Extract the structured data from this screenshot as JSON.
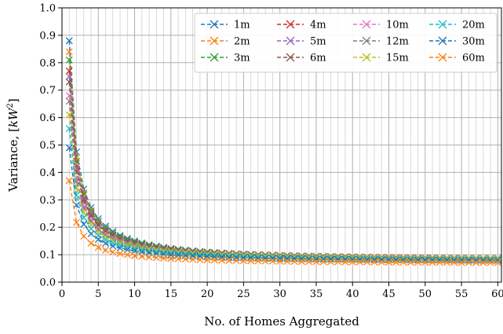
{
  "chart_data": {
    "type": "line",
    "title": "",
    "xlabel": "No. of Homes Aggregated",
    "ylabel_prefix": "Variance, [",
    "ylabel_unit_base": "kW",
    "ylabel_unit_exp": "2",
    "ylabel_suffix": "]",
    "xlim": [
      0,
      60.5
    ],
    "ylim": [
      0.0,
      1.0
    ],
    "xticks": [
      0,
      5,
      10,
      15,
      20,
      25,
      30,
      35,
      40,
      45,
      50,
      55,
      60
    ],
    "yticks": [
      0.0,
      0.1,
      0.2,
      0.3,
      0.4,
      0.5,
      0.6,
      0.7,
      0.8,
      0.9,
      1.0
    ],
    "xtick_labels": [
      "0",
      "5",
      "10",
      "15",
      "20",
      "25",
      "30",
      "35",
      "40",
      "45",
      "50",
      "55",
      "60"
    ],
    "ytick_labels": [
      "0.0",
      "0.1",
      "0.2",
      "0.3",
      "0.4",
      "0.5",
      "0.6",
      "0.7",
      "0.8",
      "0.9",
      "1.0"
    ],
    "grid": true,
    "grid_minor_x_step": 1,
    "legend_location": "top-right",
    "legend_columns": 4,
    "marker": "x",
    "line_style": "dashed",
    "x": [
      1,
      2,
      3,
      4,
      5,
      6,
      7,
      8,
      9,
      10,
      11,
      12,
      13,
      14,
      15,
      16,
      17,
      18,
      19,
      20,
      21,
      22,
      23,
      24,
      25,
      26,
      27,
      28,
      29,
      30,
      31,
      32,
      33,
      34,
      35,
      36,
      37,
      38,
      39,
      40,
      41,
      42,
      43,
      44,
      45,
      46,
      47,
      48,
      49,
      50,
      51,
      52,
      53,
      54,
      55,
      56,
      57,
      58,
      59,
      60
    ],
    "model": "y = floor + a / x",
    "series": [
      {
        "name": "1m",
        "color": "#1f77b4",
        "at_1": 0.88,
        "floor": 0.069
      },
      {
        "name": "2m",
        "color": "#ff7f0e",
        "at_1": 0.84,
        "floor": 0.068
      },
      {
        "name": "3m",
        "color": "#2ca02c",
        "at_1": 0.81,
        "floor": 0.073
      },
      {
        "name": "4m",
        "color": "#d62728",
        "at_1": 0.77,
        "floor": 0.072
      },
      {
        "name": "5m",
        "color": "#9467bd",
        "at_1": 0.75,
        "floor": 0.074
      },
      {
        "name": "6m",
        "color": "#8c564b",
        "at_1": 0.73,
        "floor": 0.076
      },
      {
        "name": "10m",
        "color": "#e377c2",
        "at_1": 0.68,
        "floor": 0.074
      },
      {
        "name": "12m",
        "color": "#7f7f7f",
        "at_1": 0.66,
        "floor": 0.075
      },
      {
        "name": "15m",
        "color": "#bcbd22",
        "at_1": 0.61,
        "floor": 0.076
      },
      {
        "name": "20m",
        "color": "#17becf",
        "at_1": 0.56,
        "floor": 0.073
      },
      {
        "name": "30m",
        "color": "#1f77b4",
        "at_1": 0.49,
        "floor": 0.072
      },
      {
        "name": "60m",
        "color": "#ff7f0e",
        "at_1": 0.37,
        "floor": 0.066
      }
    ]
  }
}
